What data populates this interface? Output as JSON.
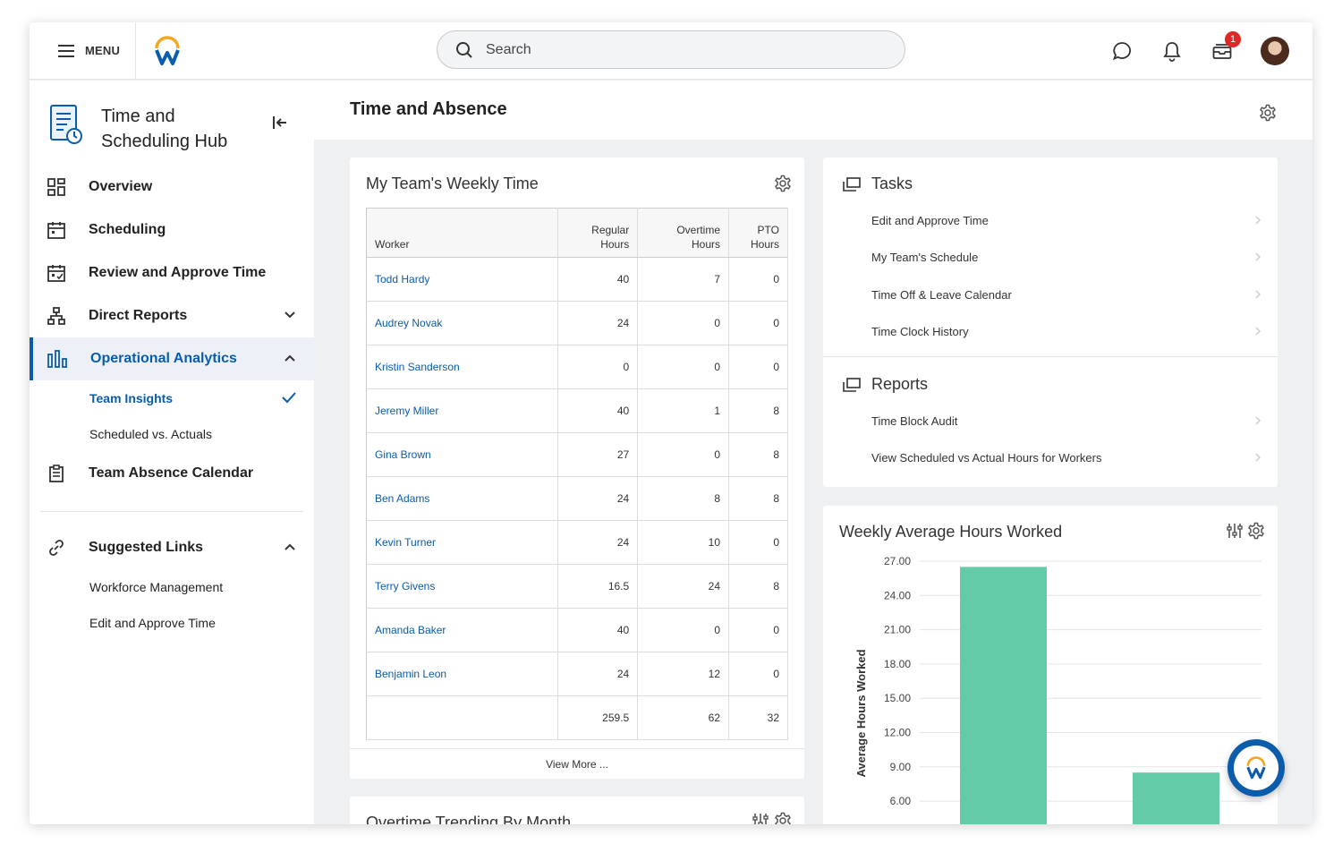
{
  "topbar": {
    "menu_label": "MENU",
    "search_placeholder": "Search",
    "notification_count": "1"
  },
  "sidebar": {
    "hub_title": "Time and Scheduling Hub",
    "items": [
      {
        "label": "Overview",
        "icon": "overview-grid-icon"
      },
      {
        "label": "Scheduling",
        "icon": "calendar-icon"
      },
      {
        "label": "Review and Approve Time",
        "icon": "calendar-check-icon"
      },
      {
        "label": "Direct Reports",
        "icon": "org-chart-icon"
      },
      {
        "label": "Operational Analytics",
        "icon": "bar-chart-icon"
      },
      {
        "label": "Team Absence Calendar",
        "icon": "clipboard-icon"
      },
      {
        "label": "Suggested Links",
        "icon": "link-icon"
      }
    ],
    "analytics_sub": [
      "Team Insights",
      "Scheduled vs. Actuals"
    ],
    "suggested_sub": [
      "Workforce Management",
      "Edit and Approve Time"
    ]
  },
  "main": {
    "title": "Time and Absence"
  },
  "weekly_time": {
    "title": "My Team's Weekly Time",
    "headers": [
      "Worker",
      "Regular Hours",
      "Overtime Hours",
      "PTO Hours"
    ],
    "rows": [
      {
        "worker": "Todd Hardy",
        "regular": "40",
        "overtime": "7",
        "pto": "0"
      },
      {
        "worker": "Audrey Novak",
        "regular": "24",
        "overtime": "0",
        "pto": "0"
      },
      {
        "worker": "Kristin Sanderson",
        "regular": "0",
        "overtime": "0",
        "pto": "0"
      },
      {
        "worker": "Jeremy Miller",
        "regular": "40",
        "overtime": "1",
        "pto": "8"
      },
      {
        "worker": "Gina Brown",
        "regular": "27",
        "overtime": "0",
        "pto": "8"
      },
      {
        "worker": "Ben Adams",
        "regular": "24",
        "overtime": "8",
        "pto": "8"
      },
      {
        "worker": "Kevin Turner",
        "regular": "24",
        "overtime": "10",
        "pto": "0"
      },
      {
        "worker": "Terry Givens",
        "regular": "16.5",
        "overtime": "24",
        "pto": "8"
      },
      {
        "worker": "Amanda Baker",
        "regular": "40",
        "overtime": "0",
        "pto": "0"
      },
      {
        "worker": "Benjamin Leon",
        "regular": "24",
        "overtime": "12",
        "pto": "0"
      }
    ],
    "totals": {
      "regular": "259.5",
      "overtime": "62",
      "pto": "32"
    },
    "view_more": "View More ..."
  },
  "overtime_card": {
    "title": "Overtime Trending By Month"
  },
  "tasks": {
    "title": "Tasks",
    "items": [
      "Edit and Approve Time",
      "My Team's Schedule",
      "Time Off & Leave Calendar",
      "Time Clock History"
    ]
  },
  "reports": {
    "title": "Reports",
    "items": [
      "Time Block Audit",
      "View Scheduled vs Actual Hours for Workers"
    ]
  },
  "chart_card": {
    "title": "Weekly Average Hours Worked"
  },
  "chart_data": {
    "type": "bar",
    "title": "Weekly Average Hours Worked",
    "ylabel": "Average Hours Worked",
    "xlabel": "",
    "yticks": [
      "27.00",
      "24.00",
      "21.00",
      "18.00",
      "15.00",
      "12.00",
      "9.00",
      "6.00"
    ],
    "categories": [
      "",
      ""
    ],
    "values": [
      26.5,
      8.5
    ],
    "ylim": [
      3,
      27
    ],
    "grid": true,
    "bar_color": "#64cba8"
  },
  "colors": {
    "accent": "#0b5cab",
    "bar": "#64cba8",
    "badge": "#de2727"
  }
}
